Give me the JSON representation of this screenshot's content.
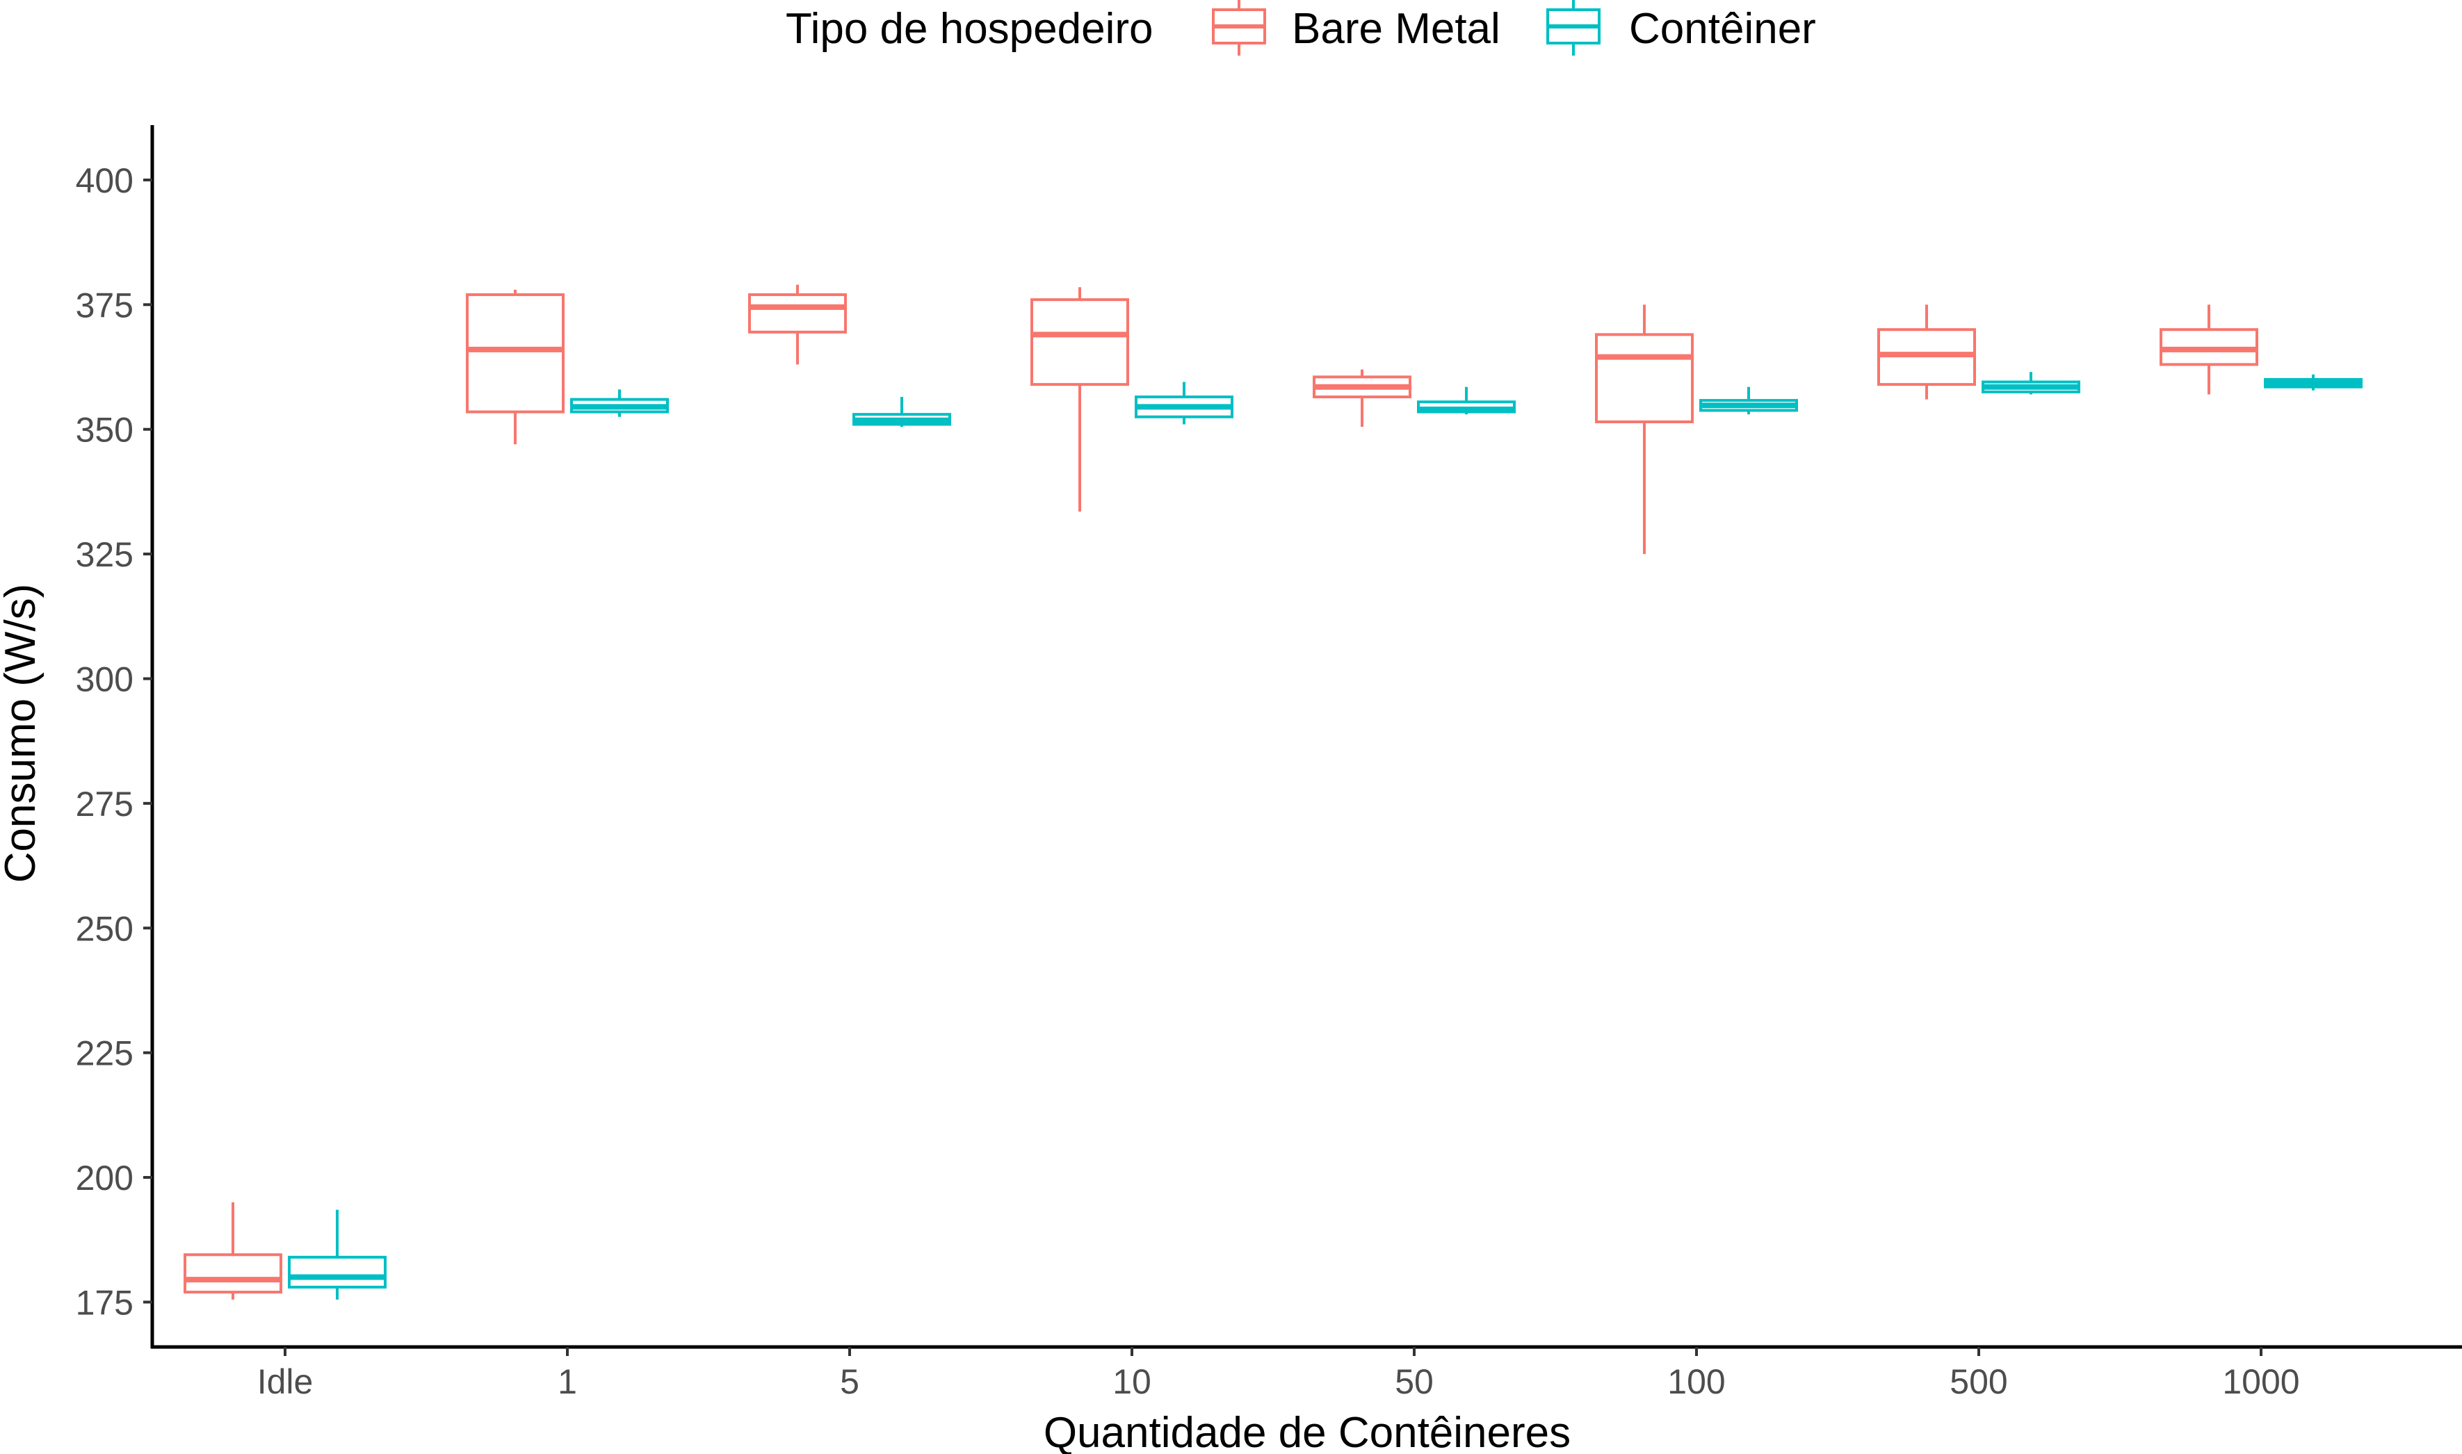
{
  "chart_data": {
    "type": "boxplot",
    "xlabel": "Quantidade de Contêineres",
    "ylabel": "Consumo (W/s)",
    "categories": [
      "Idle",
      "1",
      "5",
      "10",
      "50",
      "100",
      "500",
      "1000"
    ],
    "ylim": [
      166,
      411
    ],
    "yticks": [
      175,
      200,
      225,
      250,
      275,
      300,
      325,
      350,
      375,
      400
    ],
    "grid": false,
    "legend": {
      "title": "Tipo de hospedeiro",
      "position": "top"
    },
    "series": [
      {
        "name": "Bare Metal",
        "color": "#F8766D",
        "boxes": [
          {
            "min": 175.5,
            "q1": 177,
            "median": 179.5,
            "q3": 184.5,
            "max": 195
          },
          {
            "min": 347,
            "q1": 353.5,
            "median": 366,
            "q3": 377,
            "max": 378
          },
          {
            "min": 363,
            "q1": 369.5,
            "median": 374.5,
            "q3": 377,
            "max": 379
          },
          {
            "min": 333.5,
            "q1": 359,
            "median": 369,
            "q3": 376,
            "max": 378.5
          },
          {
            "min": 350.5,
            "q1": 356.5,
            "median": 358.5,
            "q3": 360.5,
            "max": 362
          },
          {
            "min": 325,
            "q1": 351.5,
            "median": 364.5,
            "q3": 369,
            "max": 375
          },
          {
            "min": 356,
            "q1": 359,
            "median": 365,
            "q3": 370,
            "max": 375
          },
          {
            "min": 357,
            "q1": 363,
            "median": 366,
            "q3": 370,
            "max": 375
          }
        ]
      },
      {
        "name": "Contêiner",
        "color": "#00BFC4",
        "boxes": [
          {
            "min": 175.5,
            "q1": 178,
            "median": 180,
            "q3": 184,
            "max": 193.5
          },
          {
            "min": 352.5,
            "q1": 353.5,
            "median": 354.5,
            "q3": 356,
            "max": 358
          },
          {
            "min": 350.5,
            "q1": 351,
            "median": 351.8,
            "q3": 353,
            "max": 356.5
          },
          {
            "min": 351,
            "q1": 352.5,
            "median": 354.5,
            "q3": 356.5,
            "max": 359.5
          },
          {
            "min": 353,
            "q1": 353.5,
            "median": 354,
            "q3": 355.5,
            "max": 358.5
          },
          {
            "min": 353,
            "q1": 353.8,
            "median": 354.8,
            "q3": 355.8,
            "max": 358.5
          },
          {
            "min": 357,
            "q1": 357.5,
            "median": 358.5,
            "q3": 359.5,
            "max": 361.5
          },
          {
            "min": 357.8,
            "q1": 358.5,
            "median": 359.2,
            "q3": 360,
            "max": 361
          }
        ]
      }
    ]
  }
}
